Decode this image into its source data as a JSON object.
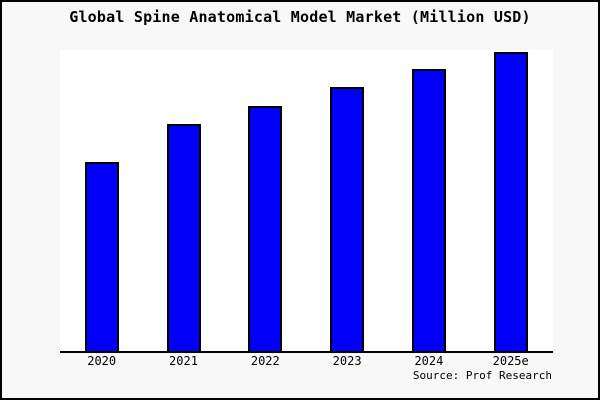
{
  "title": "Global Spine Anatomical Model Market (Million USD)",
  "source": {
    "label": "Source: Prof Research"
  },
  "colors": {
    "page_background": "#f8f8f8",
    "plot_background": "#ffffff",
    "bar_fill": "#0000fa",
    "bar_edge": "#000000",
    "axis_line": "#000000",
    "text": "#000000",
    "frame_border": "#000000"
  },
  "chart_data": {
    "type": "bar",
    "title": "Global Spine Anatomical Model Market (Million USD)",
    "categories": [
      "2020",
      "2021",
      "2022",
      "2023",
      "2024",
      "2025e"
    ],
    "values": [
      63.2,
      75.8,
      82.1,
      88.3,
      94.3,
      100
    ],
    "value_note": "No y-axis scale or gridlines shown in chart; values are relative units estimated from bar heights, tallest bar (2025e) = 100",
    "xlabel": "",
    "ylabel": "",
    "ylim": [
      0,
      100
    ],
    "grid": false,
    "legend": false,
    "y_axis_visible": false,
    "x_axis_visible": true,
    "annotations": [
      "Source: Prof Research"
    ]
  }
}
